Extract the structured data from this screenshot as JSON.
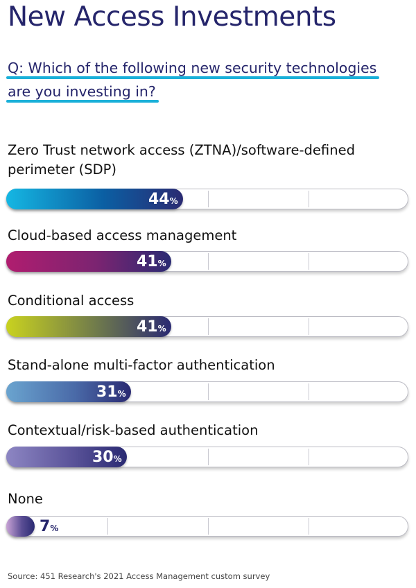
{
  "title": "New Access Investments",
  "question": {
    "line1": "Q: Which of the following new security technologies",
    "line2": "are you investing in?"
  },
  "source": "Source: 451 Research's 2021 Access Management custom survey",
  "chart_data": {
    "type": "bar",
    "orientation": "horizontal",
    "value_unit": "%",
    "xlim": [
      0,
      100
    ],
    "grid": true,
    "categories": [
      "Zero Trust network access (ZTNA)/software-defined perimeter (SDP)",
      "Cloud-based access management",
      "Conditional access",
      "Stand-alone multi-factor authentication",
      "Contextual/risk-based authentication",
      "None"
    ],
    "label_lines": [
      [
        "Zero Trust network access (ZTNA)/software-defined",
        "perimeter (SDP)"
      ],
      [
        "Cloud-based access management"
      ],
      [
        "Conditional access"
      ],
      [
        "Stand-alone multi-factor authentication"
      ],
      [
        "Contextual/risk-based authentication"
      ],
      [
        "None"
      ]
    ],
    "values": [
      44,
      41,
      41,
      31,
      30,
      7
    ],
    "value_labels": [
      "44",
      "41",
      "41",
      "31",
      "30",
      "7"
    ],
    "percent_sign": "%",
    "bar_gradients": [
      [
        "#15b7e3",
        "#0b5fa3",
        "#2a2a72"
      ],
      [
        "#b01d6f",
        "#7b2471",
        "#2a2a72"
      ],
      [
        "#c9d21f",
        "#6f7a4c",
        "#2a2a72"
      ],
      [
        "#6aa4cf",
        "#4a6aa8",
        "#2a2a72"
      ],
      [
        "#8d86c3",
        "#5a5399",
        "#2a2a72"
      ],
      [
        "#c9a4d6",
        "#5a4d94",
        "#2a2a72"
      ]
    ],
    "value_label_colors": [
      "#ffffff",
      "#ffffff",
      "#ffffff",
      "#ffffff",
      "#ffffff",
      "#25256b"
    ]
  }
}
